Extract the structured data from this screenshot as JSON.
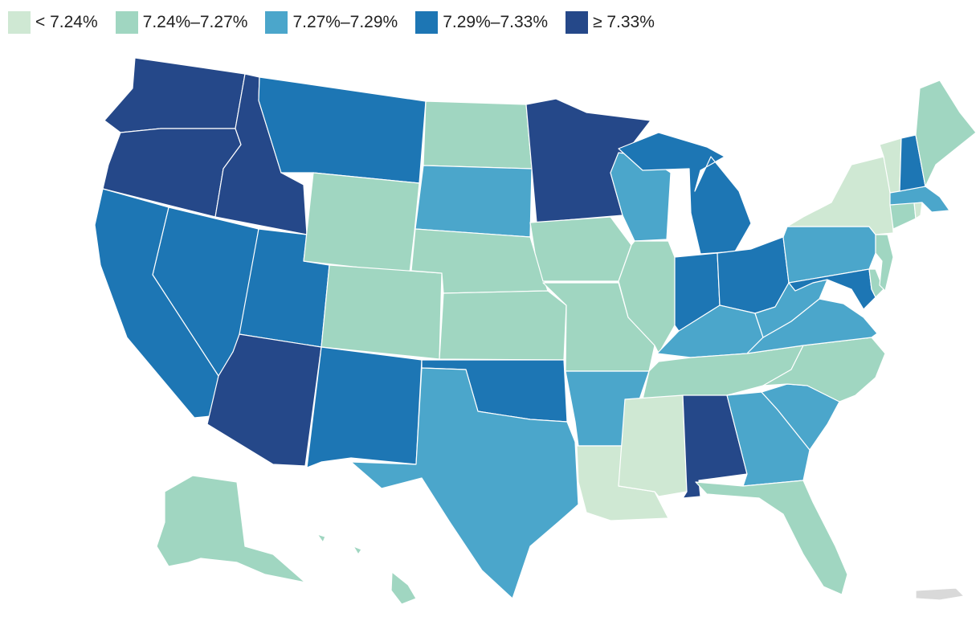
{
  "legend": {
    "bins": [
      {
        "label": "< 7.24%",
        "color": "#cfe8d3"
      },
      {
        "label": "7.24%–7.27%",
        "color": "#a0d6c1"
      },
      {
        "label": "7.27%–7.29%",
        "color": "#4ba6cb"
      },
      {
        "label": "7.29%–7.33%",
        "color": "#1d76b4"
      },
      {
        "label": "≥ 7.33%",
        "color": "#254889"
      }
    ],
    "no_data_color": "#d9d9d9"
  },
  "states": {
    "WA": 4,
    "OR": 4,
    "ID": 4,
    "AZ": 4,
    "MN": 4,
    "AL": 4,
    "MT": 3,
    "NV": 3,
    "CA": 3,
    "UT": 3,
    "NM": 3,
    "OK": 3,
    "MI": 3,
    "IN": 3,
    "OH": 3,
    "NH": 3,
    "MD": 3,
    "SD": 2,
    "TX": 2,
    "AR": 2,
    "WI": 2,
    "KY": 2,
    "WV": 2,
    "VA": 2,
    "PA": 2,
    "GA": 2,
    "SC": 2,
    "MA": 2,
    "ND": 1,
    "WY": 1,
    "CO": 1,
    "NE": 1,
    "KS": 1,
    "IA": 1,
    "MO": 1,
    "IL": 1,
    "TN": 1,
    "NC": 1,
    "FL": 1,
    "ME": 1,
    "CT": 1,
    "NJ": 1,
    "DE": 1,
    "AK": 1,
    "HI": 1,
    "NY": 0,
    "VT": 0,
    "MS": 0,
    "LA": 0,
    "RI": 0
  }
}
